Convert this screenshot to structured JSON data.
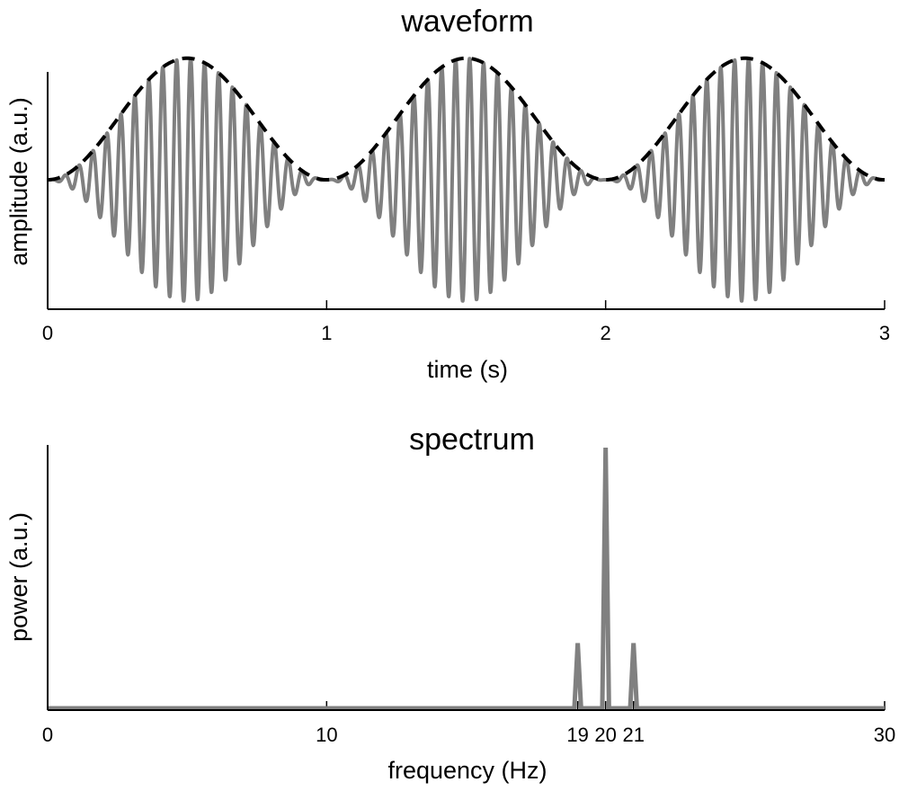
{
  "chart_data": [
    {
      "type": "line",
      "title": "waveform",
      "xlabel": "time (s)",
      "ylabel": "amplitude (a.u.)",
      "xlim": [
        0,
        3
      ],
      "ylim": [
        -1.05,
        1.05
      ],
      "x_ticks": [
        0,
        1,
        2,
        3
      ],
      "x_tick_labels": [
        "0",
        "1",
        "2",
        "3"
      ],
      "y_ticks": [],
      "grid": false,
      "carrier_frequency_hz": 20,
      "modulation_frequency_hz": 1,
      "series": [
        {
          "style": "solid",
          "color": "#808080",
          "formula": "0.5 * (1 - cos(2*pi*1*t)) * sin(2*pi*20*t)"
        },
        {
          "style": "dashed",
          "color": "#000000",
          "formula": "0.5 * (1 - cos(2*pi*1*t))"
        }
      ]
    },
    {
      "type": "line",
      "title": "spectrum",
      "xlabel": "frequency (Hz)",
      "ylabel": "power (a.u.)",
      "xlim": [
        0,
        30
      ],
      "ylim": [
        0,
        1
      ],
      "x_ticks": [
        0,
        10,
        19,
        20,
        21,
        30
      ],
      "x_tick_labels": [
        "0",
        "10",
        "19",
        "20",
        "21",
        "30"
      ],
      "y_ticks": [],
      "grid": false,
      "color": "#808080",
      "peaks": [
        {
          "x": 19,
          "y": 0.25
        },
        {
          "x": 20,
          "y": 1.0
        },
        {
          "x": 21,
          "y": 0.25
        }
      ]
    }
  ]
}
